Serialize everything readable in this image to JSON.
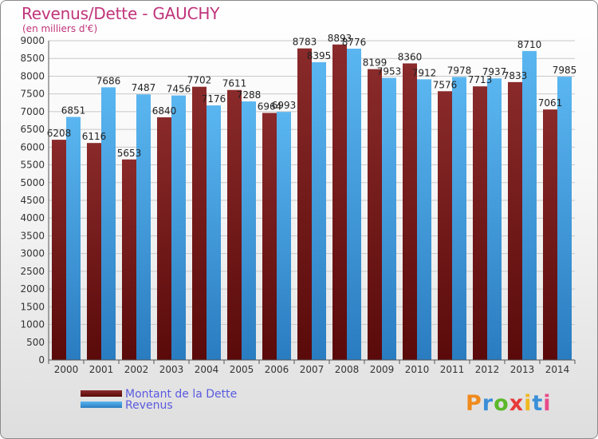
{
  "header": {
    "title": "Revenus/Dette - GAUCHY",
    "subtitle": "(en milliers d'€)"
  },
  "colors": {
    "dette": "#7a1a1a",
    "revenus": "#4aa8e8",
    "title": "#c0347a",
    "legend_text": "#5a5ae0"
  },
  "legend": {
    "items": [
      {
        "label": "Montant de la Dette",
        "color": "#7a1a1a"
      },
      {
        "label": "Revenus",
        "color": "#4aa8e8"
      }
    ]
  },
  "logo": {
    "letters": [
      "P",
      "r",
      "o",
      "x",
      "i",
      "t",
      "i"
    ],
    "colors": [
      "#f08a1c",
      "#3a8fd8",
      "#5cb82a",
      "#e83a3a",
      "#f0b81c",
      "#3a8fd8",
      "#e84a8a"
    ]
  },
  "chart_data": {
    "type": "bar",
    "categories": [
      "2000",
      "2001",
      "2002",
      "2003",
      "2004",
      "2005",
      "2006",
      "2007",
      "2008",
      "2009",
      "2010",
      "2011",
      "2012",
      "2013",
      "2014"
    ],
    "series": [
      {
        "name": "Montant de la Dette",
        "values": [
          6208,
          6116,
          5653,
          6840,
          7702,
          7611,
          6964,
          8783,
          8893,
          8199,
          8360,
          7576,
          7713,
          7833,
          7061
        ]
      },
      {
        "name": "Revenus",
        "values": [
          6851,
          7686,
          7487,
          7456,
          7176,
          7288,
          6993,
          8395,
          8776,
          7953,
          7912,
          7978,
          7937,
          8710,
          7985
        ]
      }
    ],
    "ylim": [
      0,
      9000
    ],
    "yticks": [
      0,
      500,
      1000,
      1500,
      2000,
      2500,
      3000,
      3500,
      4000,
      4500,
      5000,
      5500,
      6000,
      6500,
      7000,
      7500,
      8000,
      8500,
      9000
    ],
    "grid": true,
    "legend_position": "bottom-left"
  }
}
